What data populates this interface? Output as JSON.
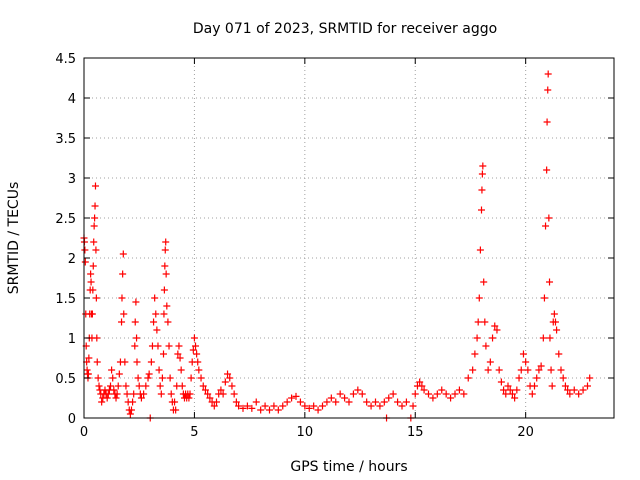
{
  "chart_data": {
    "type": "scatter",
    "title": "Day 071 of 2023, SRMTID for receiver aggo",
    "xlabel": "GPS time / hours",
    "ylabel": "SRMTID / TECUs",
    "xlim": [
      0,
      24
    ],
    "ylim": [
      0,
      4.5
    ],
    "grid": true,
    "x_ticks": [
      0,
      5,
      10,
      15,
      20
    ],
    "x_tick_labels": [
      "0",
      "5",
      "10",
      "15",
      "20"
    ],
    "y_ticks": [
      0,
      0.5,
      1,
      1.5,
      2,
      2.5,
      3,
      3.5,
      4,
      4.5
    ],
    "y_tick_labels": [
      "0",
      "0.5",
      "1",
      "1.5",
      "2",
      "2.5",
      "3",
      "3.5",
      "4",
      "4.5"
    ],
    "marker": "+",
    "series": [
      {
        "name": "SRMTID",
        "color": "#ff0000",
        "points": [
          [
            0.0,
            2.25
          ],
          [
            0.02,
            2.2
          ],
          [
            0.04,
            2.1
          ],
          [
            0.06,
            1.95
          ],
          [
            0.08,
            1.3
          ],
          [
            0.1,
            0.9
          ],
          [
            0.12,
            0.7
          ],
          [
            0.14,
            0.6
          ],
          [
            0.16,
            0.55
          ],
          [
            0.18,
            0.5
          ],
          [
            0.2,
            0.55
          ],
          [
            0.22,
            0.75
          ],
          [
            0.24,
            1.0
          ],
          [
            0.26,
            1.3
          ],
          [
            0.28,
            1.6
          ],
          [
            0.3,
            1.8
          ],
          [
            0.32,
            1.7
          ],
          [
            0.34,
            1.3
          ],
          [
            0.36,
            1.0
          ],
          [
            0.38,
            1.3
          ],
          [
            0.4,
            1.6
          ],
          [
            0.42,
            1.9
          ],
          [
            0.44,
            2.2
          ],
          [
            0.46,
            2.4
          ],
          [
            0.48,
            2.5
          ],
          [
            0.5,
            2.65
          ],
          [
            0.52,
            2.9
          ],
          [
            0.54,
            2.1
          ],
          [
            0.56,
            1.5
          ],
          [
            0.58,
            1.0
          ],
          [
            0.6,
            0.7
          ],
          [
            0.64,
            0.5
          ],
          [
            0.68,
            0.4
          ],
          [
            0.72,
            0.35
          ],
          [
            0.76,
            0.3
          ],
          [
            0.8,
            0.2
          ],
          [
            0.85,
            0.25
          ],
          [
            0.9,
            0.3
          ],
          [
            0.95,
            0.35
          ],
          [
            1.0,
            0.3
          ],
          [
            1.05,
            0.25
          ],
          [
            1.1,
            0.3
          ],
          [
            1.15,
            0.35
          ],
          [
            1.2,
            0.4
          ],
          [
            1.25,
            0.6
          ],
          [
            1.3,
            0.5
          ],
          [
            1.35,
            0.35
          ],
          [
            1.4,
            0.3
          ],
          [
            1.45,
            0.25
          ],
          [
            1.5,
            0.3
          ],
          [
            1.55,
            0.4
          ],
          [
            1.6,
            0.55
          ],
          [
            1.65,
            0.7
          ],
          [
            1.7,
            1.2
          ],
          [
            1.72,
            1.5
          ],
          [
            1.75,
            1.8
          ],
          [
            1.78,
            2.05
          ],
          [
            1.8,
            1.3
          ],
          [
            1.85,
            0.7
          ],
          [
            1.9,
            0.4
          ],
          [
            1.95,
            0.3
          ],
          [
            2.0,
            0.2
          ],
          [
            2.05,
            0.1
          ],
          [
            2.1,
            0.05
          ],
          [
            2.15,
            0.1
          ],
          [
            2.2,
            0.2
          ],
          [
            2.25,
            0.3
          ],
          [
            2.3,
            0.9
          ],
          [
            2.32,
            1.2
          ],
          [
            2.35,
            1.45
          ],
          [
            2.38,
            1.0
          ],
          [
            2.4,
            0.7
          ],
          [
            2.45,
            0.5
          ],
          [
            2.5,
            0.4
          ],
          [
            2.55,
            0.3
          ],
          [
            2.6,
            0.25
          ],
          [
            2.7,
            0.3
          ],
          [
            2.8,
            0.4
          ],
          [
            2.9,
            0.5
          ],
          [
            2.95,
            0.55
          ],
          [
            3.0,
            0.0
          ],
          [
            3.05,
            0.7
          ],
          [
            3.1,
            0.9
          ],
          [
            3.15,
            1.2
          ],
          [
            3.2,
            1.5
          ],
          [
            3.25,
            1.3
          ],
          [
            3.3,
            1.1
          ],
          [
            3.35,
            0.9
          ],
          [
            3.4,
            0.6
          ],
          [
            3.45,
            0.4
          ],
          [
            3.5,
            0.3
          ],
          [
            3.55,
            0.5
          ],
          [
            3.6,
            0.8
          ],
          [
            3.62,
            1.3
          ],
          [
            3.64,
            1.6
          ],
          [
            3.66,
            1.9
          ],
          [
            3.68,
            2.1
          ],
          [
            3.7,
            2.2
          ],
          [
            3.72,
            1.8
          ],
          [
            3.75,
            1.4
          ],
          [
            3.8,
            1.2
          ],
          [
            3.85,
            0.9
          ],
          [
            3.9,
            0.5
          ],
          [
            3.95,
            0.3
          ],
          [
            4.0,
            0.2
          ],
          [
            4.05,
            0.1
          ],
          [
            4.1,
            0.2
          ],
          [
            4.15,
            0.1
          ],
          [
            4.2,
            0.4
          ],
          [
            4.25,
            0.8
          ],
          [
            4.3,
            0.9
          ],
          [
            4.35,
            0.75
          ],
          [
            4.4,
            0.6
          ],
          [
            4.45,
            0.4
          ],
          [
            4.5,
            0.3
          ],
          [
            4.55,
            0.25
          ],
          [
            4.6,
            0.3
          ],
          [
            4.65,
            0.25
          ],
          [
            4.7,
            0.3
          ],
          [
            4.75,
            0.25
          ],
          [
            4.8,
            0.3
          ],
          [
            4.85,
            0.5
          ],
          [
            4.9,
            0.7
          ],
          [
            4.95,
            0.85
          ],
          [
            5.0,
            1.0
          ],
          [
            5.05,
            0.9
          ],
          [
            5.1,
            0.8
          ],
          [
            5.15,
            0.7
          ],
          [
            5.2,
            0.6
          ],
          [
            5.3,
            0.5
          ],
          [
            5.4,
            0.4
          ],
          [
            5.5,
            0.35
          ],
          [
            5.6,
            0.3
          ],
          [
            5.7,
            0.25
          ],
          [
            5.8,
            0.2
          ],
          [
            5.9,
            0.15
          ],
          [
            6.0,
            0.2
          ],
          [
            6.1,
            0.3
          ],
          [
            6.2,
            0.35
          ],
          [
            6.3,
            0.3
          ],
          [
            6.4,
            0.45
          ],
          [
            6.5,
            0.55
          ],
          [
            6.6,
            0.5
          ],
          [
            6.7,
            0.4
          ],
          [
            6.8,
            0.3
          ],
          [
            6.9,
            0.2
          ],
          [
            7.0,
            0.15
          ],
          [
            7.2,
            0.12
          ],
          [
            7.4,
            0.15
          ],
          [
            7.6,
            0.12
          ],
          [
            7.8,
            0.2
          ],
          [
            8.0,
            0.1
          ],
          [
            8.2,
            0.15
          ],
          [
            8.4,
            0.1
          ],
          [
            8.6,
            0.15
          ],
          [
            8.8,
            0.1
          ],
          [
            9.0,
            0.15
          ],
          [
            9.2,
            0.2
          ],
          [
            9.4,
            0.25
          ],
          [
            9.6,
            0.27
          ],
          [
            9.8,
            0.2
          ],
          [
            10.0,
            0.15
          ],
          [
            10.2,
            0.12
          ],
          [
            10.4,
            0.15
          ],
          [
            10.6,
            0.1
          ],
          [
            10.8,
            0.15
          ],
          [
            11.0,
            0.2
          ],
          [
            11.2,
            0.25
          ],
          [
            11.4,
            0.2
          ],
          [
            11.6,
            0.3
          ],
          [
            11.8,
            0.25
          ],
          [
            12.0,
            0.2
          ],
          [
            12.2,
            0.3
          ],
          [
            12.4,
            0.35
          ],
          [
            12.6,
            0.3
          ],
          [
            12.8,
            0.2
          ],
          [
            13.0,
            0.15
          ],
          [
            13.2,
            0.2
          ],
          [
            13.4,
            0.15
          ],
          [
            13.6,
            0.2
          ],
          [
            13.7,
            0.0
          ],
          [
            13.8,
            0.25
          ],
          [
            14.0,
            0.3
          ],
          [
            14.2,
            0.2
          ],
          [
            14.4,
            0.15
          ],
          [
            14.6,
            0.2
          ],
          [
            14.8,
            0.0
          ],
          [
            14.9,
            0.15
          ],
          [
            15.0,
            0.3
          ],
          [
            15.1,
            0.4
          ],
          [
            15.2,
            0.45
          ],
          [
            15.3,
            0.4
          ],
          [
            15.4,
            0.35
          ],
          [
            15.6,
            0.3
          ],
          [
            15.8,
            0.25
          ],
          [
            16.0,
            0.3
          ],
          [
            16.2,
            0.35
          ],
          [
            16.4,
            0.3
          ],
          [
            16.6,
            0.25
          ],
          [
            16.8,
            0.3
          ],
          [
            17.0,
            0.35
          ],
          [
            17.2,
            0.3
          ],
          [
            17.4,
            0.5
          ],
          [
            17.6,
            0.6
          ],
          [
            17.7,
            0.8
          ],
          [
            17.8,
            1.0
          ],
          [
            17.85,
            1.2
          ],
          [
            17.9,
            1.5
          ],
          [
            17.95,
            2.1
          ],
          [
            18.0,
            2.6
          ],
          [
            18.02,
            2.85
          ],
          [
            18.04,
            3.05
          ],
          [
            18.06,
            3.15
          ],
          [
            18.1,
            1.7
          ],
          [
            18.15,
            1.2
          ],
          [
            18.2,
            0.9
          ],
          [
            18.3,
            0.6
          ],
          [
            18.4,
            0.7
          ],
          [
            18.5,
            1.0
          ],
          [
            18.6,
            1.15
          ],
          [
            18.7,
            1.1
          ],
          [
            18.8,
            0.6
          ],
          [
            18.9,
            0.45
          ],
          [
            19.0,
            0.35
          ],
          [
            19.1,
            0.3
          ],
          [
            19.2,
            0.4
          ],
          [
            19.3,
            0.35
          ],
          [
            19.4,
            0.3
          ],
          [
            19.5,
            0.25
          ],
          [
            19.6,
            0.35
          ],
          [
            19.7,
            0.5
          ],
          [
            19.8,
            0.6
          ],
          [
            19.9,
            0.8
          ],
          [
            20.0,
            0.7
          ],
          [
            20.1,
            0.6
          ],
          [
            20.2,
            0.4
          ],
          [
            20.3,
            0.3
          ],
          [
            20.4,
            0.4
          ],
          [
            20.5,
            0.5
          ],
          [
            20.6,
            0.6
          ],
          [
            20.7,
            0.65
          ],
          [
            20.8,
            1.0
          ],
          [
            20.85,
            1.5
          ],
          [
            20.9,
            2.4
          ],
          [
            20.95,
            3.1
          ],
          [
            20.97,
            3.7
          ],
          [
            21.0,
            4.1
          ],
          [
            21.02,
            4.3
          ],
          [
            21.05,
            2.5
          ],
          [
            21.08,
            1.7
          ],
          [
            21.1,
            1.0
          ],
          [
            21.15,
            0.6
          ],
          [
            21.2,
            0.4
          ],
          [
            21.25,
            1.2
          ],
          [
            21.3,
            1.3
          ],
          [
            21.35,
            1.2
          ],
          [
            21.4,
            1.1
          ],
          [
            21.5,
            0.8
          ],
          [
            21.6,
            0.6
          ],
          [
            21.7,
            0.5
          ],
          [
            21.8,
            0.4
          ],
          [
            21.9,
            0.35
          ],
          [
            22.0,
            0.3
          ],
          [
            22.2,
            0.35
          ],
          [
            22.4,
            0.3
          ],
          [
            22.6,
            0.35
          ],
          [
            22.8,
            0.4
          ],
          [
            22.9,
            0.5
          ]
        ]
      }
    ]
  }
}
